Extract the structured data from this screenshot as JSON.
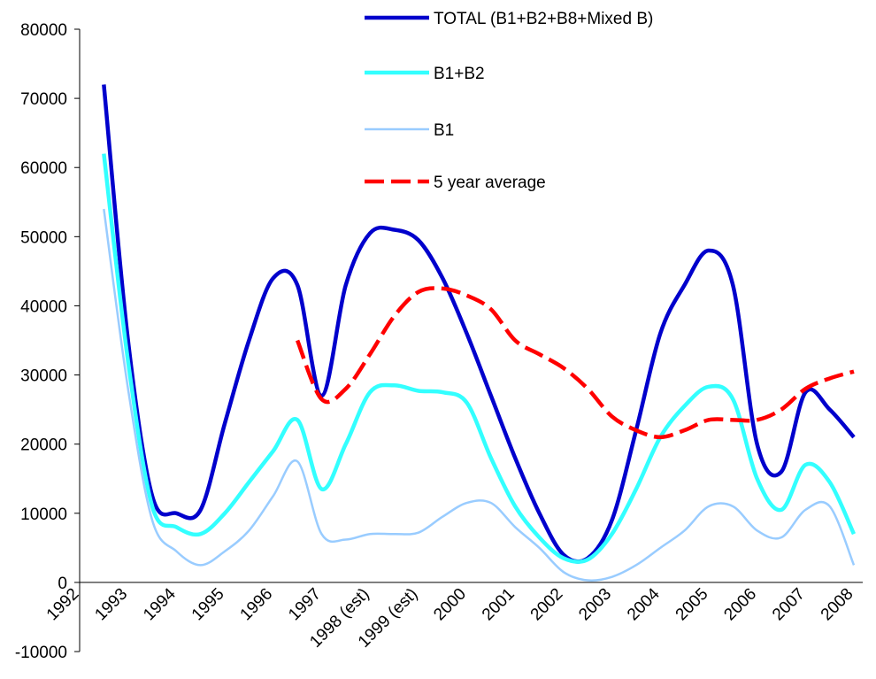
{
  "chart_data": {
    "type": "line",
    "categories": [
      "1992",
      null,
      "1993",
      null,
      "1994",
      null,
      "1995",
      null,
      "1996",
      null,
      "1997",
      null,
      "1998 (est)",
      null,
      "1999 (est)",
      null,
      "2000",
      null,
      "2001",
      null,
      "2002",
      null,
      "2003",
      null,
      "2004",
      null,
      "2005",
      null,
      "2006",
      null,
      "2007",
      null,
      "2008"
    ],
    "series": [
      {
        "name": "TOTAL (B1+B2+B8+Mixed B)",
        "color": "#0000cc",
        "width": 4.5,
        "dashed": false,
        "values": [
          null,
          72000,
          35000,
          12500,
          10000,
          10500,
          23000,
          35000,
          44000,
          43000,
          27000,
          43000,
          50500,
          51000,
          49500,
          44000,
          36000,
          27000,
          18000,
          10000,
          4000,
          3500,
          9000,
          22000,
          36000,
          43000,
          48000,
          43000,
          20000,
          16000,
          27500,
          25000,
          21000
        ]
      },
      {
        "name": "B1+B2",
        "color": "#33ffff",
        "width": 4.5,
        "dashed": false,
        "values": [
          null,
          62000,
          32000,
          11000,
          8000,
          7000,
          10000,
          14500,
          19000,
          23500,
          13500,
          20000,
          27500,
          28500,
          27700,
          27500,
          26000,
          18000,
          11000,
          6500,
          3500,
          3300,
          7000,
          13500,
          21000,
          25500,
          28300,
          26500,
          15000,
          10500,
          17000,
          14500,
          7000
        ]
      },
      {
        "name": "B1",
        "color": "#99ccff",
        "width": 2.5,
        "dashed": false,
        "values": [
          null,
          54000,
          28000,
          9000,
          4500,
          2500,
          4500,
          7500,
          12500,
          17500,
          7000,
          6200,
          7000,
          7000,
          7200,
          9500,
          11500,
          11500,
          8000,
          5000,
          1500,
          300,
          800,
          2500,
          5000,
          7500,
          11000,
          11000,
          7500,
          6500,
          10500,
          11000,
          2500
        ]
      },
      {
        "name": "5 year average",
        "color": "#ff0000",
        "width": 4.5,
        "dashed": true,
        "values": [
          null,
          null,
          null,
          null,
          null,
          null,
          null,
          null,
          null,
          35000,
          26500,
          28000,
          33000,
          38500,
          42000,
          42500,
          41500,
          39500,
          35000,
          33000,
          31000,
          28000,
          24000,
          22000,
          21000,
          22000,
          23500,
          23500,
          23500,
          25000,
          28000,
          29500,
          30500
        ]
      }
    ],
    "ylim": [
      -10000,
      80000
    ],
    "yticks": [
      -10000,
      0,
      10000,
      20000,
      30000,
      40000,
      50000,
      60000,
      70000,
      80000
    ]
  }
}
